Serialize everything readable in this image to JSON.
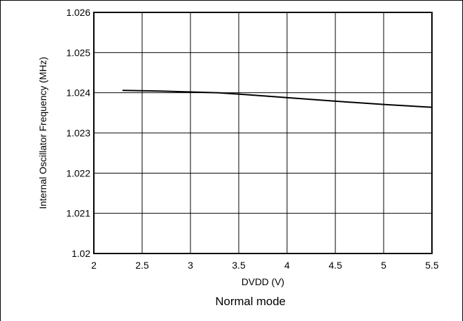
{
  "chart_data": {
    "type": "line",
    "title": "",
    "caption": "Normal mode",
    "xlabel": "DVDD (V)",
    "ylabel": "Internal Oscillator Frequency (MHz)",
    "xlim": [
      2,
      5.5
    ],
    "ylim": [
      1.02,
      1.026
    ],
    "x_ticks": [
      "2",
      "2.5",
      "3",
      "3.5",
      "4",
      "4.5",
      "5",
      "5.5"
    ],
    "y_ticks": [
      "1.02",
      "1.021",
      "1.022",
      "1.023",
      "1.024",
      "1.025",
      "1.026"
    ],
    "grid": true,
    "legend": false,
    "series": [
      {
        "x": [
          2.3,
          2.7,
          3.0,
          3.3,
          3.6,
          4.0,
          4.5,
          5.0,
          5.5
        ],
        "y": [
          1.02406,
          1.02404,
          1.02402,
          1.024,
          1.02395,
          1.02388,
          1.02379,
          1.02371,
          1.02364
        ]
      }
    ],
    "colors": {
      "line": "#000000",
      "grid": "#000000",
      "frame": "#000000"
    }
  }
}
